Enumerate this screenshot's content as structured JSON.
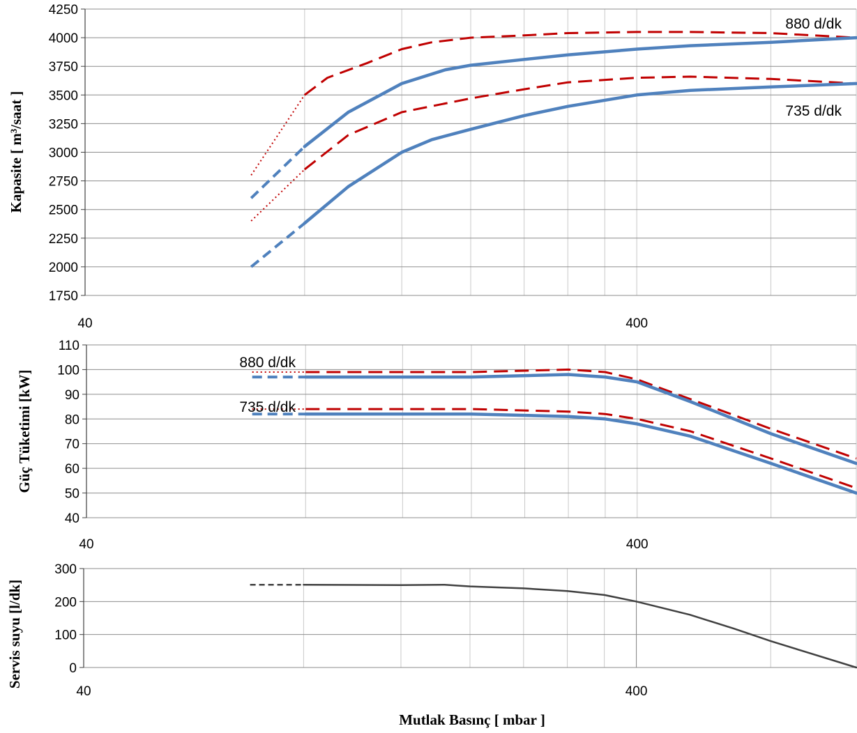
{
  "chart_data": [
    {
      "type": "line",
      "xscale": "log",
      "xlim": [
        40,
        1000
      ],
      "ylim": [
        1750,
        4250
      ],
      "ylabel": "Kapasite [ m³/saat ]",
      "xlabel": "",
      "x_tick_labels": [
        "40",
        "400"
      ],
      "y_ticks": [
        "1750",
        "2000",
        "2250",
        "2500",
        "2750",
        "3000",
        "3250",
        "3500",
        "3750",
        "4000",
        "4250"
      ],
      "grid": true,
      "annotations": [
        "880 d/dk",
        "735 d/dk"
      ],
      "colors": {
        "measured": "#4f81bd",
        "reference": "#c00000"
      },
      "series": [
        {
          "group": "880 d/dk",
          "style": "red-dotted",
          "x": [
            80,
            100
          ],
          "y": [
            2800,
            3500
          ]
        },
        {
          "group": "880 d/dk",
          "style": "red-dashed",
          "x": [
            100,
            110,
            130,
            150,
            170,
            200,
            250,
            300,
            400,
            500,
            700,
            1000
          ],
          "y": [
            3500,
            3650,
            3780,
            3900,
            3960,
            4000,
            4020,
            4040,
            4050,
            4050,
            4040,
            4000
          ]
        },
        {
          "group": "880 d/dk",
          "style": "blue-dashed",
          "x": [
            80,
            100
          ],
          "y": [
            2600,
            3050
          ]
        },
        {
          "group": "880 d/dk",
          "style": "blue-solid",
          "x": [
            100,
            120,
            150,
            180,
            200,
            250,
            300,
            400,
            500,
            700,
            1000
          ],
          "y": [
            3050,
            3350,
            3600,
            3720,
            3760,
            3810,
            3850,
            3900,
            3930,
            3960,
            4000
          ]
        },
        {
          "group": "735 d/dk",
          "style": "red-dotted",
          "x": [
            80,
            100
          ],
          "y": [
            2400,
            2850
          ]
        },
        {
          "group": "735 d/dk",
          "style": "red-dashed",
          "x": [
            100,
            120,
            150,
            200,
            250,
            300,
            400,
            500,
            700,
            1000
          ],
          "y": [
            2850,
            3150,
            3350,
            3470,
            3550,
            3610,
            3650,
            3660,
            3640,
            3600
          ]
        },
        {
          "group": "735 d/dk",
          "style": "blue-dashed",
          "x": [
            80,
            100
          ],
          "y": [
            2000,
            2380
          ]
        },
        {
          "group": "735 d/dk",
          "style": "blue-solid",
          "x": [
            100,
            120,
            150,
            170,
            200,
            250,
            300,
            400,
            500,
            700,
            1000
          ],
          "y": [
            2380,
            2700,
            3000,
            3110,
            3200,
            3320,
            3400,
            3500,
            3540,
            3570,
            3600
          ]
        }
      ]
    },
    {
      "type": "line",
      "xscale": "log",
      "xlim": [
        40,
        1000
      ],
      "ylim": [
        40,
        110
      ],
      "ylabel": "Güç Tüketimi [kW]",
      "xlabel": "",
      "x_tick_labels": [
        "40",
        "400"
      ],
      "y_ticks": [
        "40",
        "50",
        "60",
        "70",
        "80",
        "90",
        "100",
        "110"
      ],
      "grid": true,
      "annotations": [
        "880 d/dk",
        "735 d/dk"
      ],
      "colors": {
        "measured": "#4f81bd",
        "reference": "#c00000"
      },
      "series": [
        {
          "group": "880 d/dk",
          "style": "red-dotted",
          "x": [
            80,
            100
          ],
          "y": [
            99,
            99
          ]
        },
        {
          "group": "880 d/dk",
          "style": "red-dashed",
          "x": [
            100,
            200,
            300,
            350,
            400,
            500,
            700,
            1000
          ],
          "y": [
            99,
            99,
            100,
            99,
            96,
            88,
            76,
            64
          ]
        },
        {
          "group": "880 d/dk",
          "style": "blue-dashed",
          "x": [
            80,
            100
          ],
          "y": [
            97,
            97
          ]
        },
        {
          "group": "880 d/dk",
          "style": "blue-solid",
          "x": [
            100,
            200,
            300,
            350,
            400,
            500,
            700,
            1000
          ],
          "y": [
            97,
            97,
            98,
            97,
            95,
            87,
            74,
            62
          ]
        },
        {
          "group": "735 d/dk",
          "style": "red-dotted",
          "x": [
            80,
            100
          ],
          "y": [
            84,
            84
          ]
        },
        {
          "group": "735 d/dk",
          "style": "red-dashed",
          "x": [
            100,
            200,
            300,
            350,
            400,
            500,
            700,
            1000
          ],
          "y": [
            84,
            84,
            83,
            82,
            80,
            75,
            64,
            52
          ]
        },
        {
          "group": "735 d/dk",
          "style": "blue-dashed",
          "x": [
            80,
            100
          ],
          "y": [
            82,
            82
          ]
        },
        {
          "group": "735 d/dk",
          "style": "blue-solid",
          "x": [
            100,
            200,
            300,
            350,
            400,
            500,
            700,
            1000
          ],
          "y": [
            82,
            82,
            81,
            80,
            78,
            73,
            62,
            50
          ]
        }
      ]
    },
    {
      "type": "line",
      "xscale": "log",
      "xlim": [
        40,
        1000
      ],
      "ylim": [
        0,
        300
      ],
      "ylabel": "Servis suyu [l/dk]",
      "xlabel": "Mutlak Basınç [ mbar ]",
      "x_tick_labels": [
        "40",
        "400"
      ],
      "y_ticks": [
        "0",
        "100",
        "200",
        "300"
      ],
      "grid": true,
      "colors": {
        "line": "#404040"
      },
      "series": [
        {
          "style": "gray-dashed",
          "x": [
            80,
            100
          ],
          "y": [
            251,
            251
          ]
        },
        {
          "style": "gray-solid",
          "x": [
            100,
            150,
            180,
            200,
            250,
            300,
            350,
            400,
            500,
            600,
            700,
            800,
            1000
          ],
          "y": [
            251,
            250,
            251,
            246,
            240,
            232,
            220,
            200,
            160,
            118,
            80,
            50,
            0
          ]
        }
      ]
    }
  ]
}
